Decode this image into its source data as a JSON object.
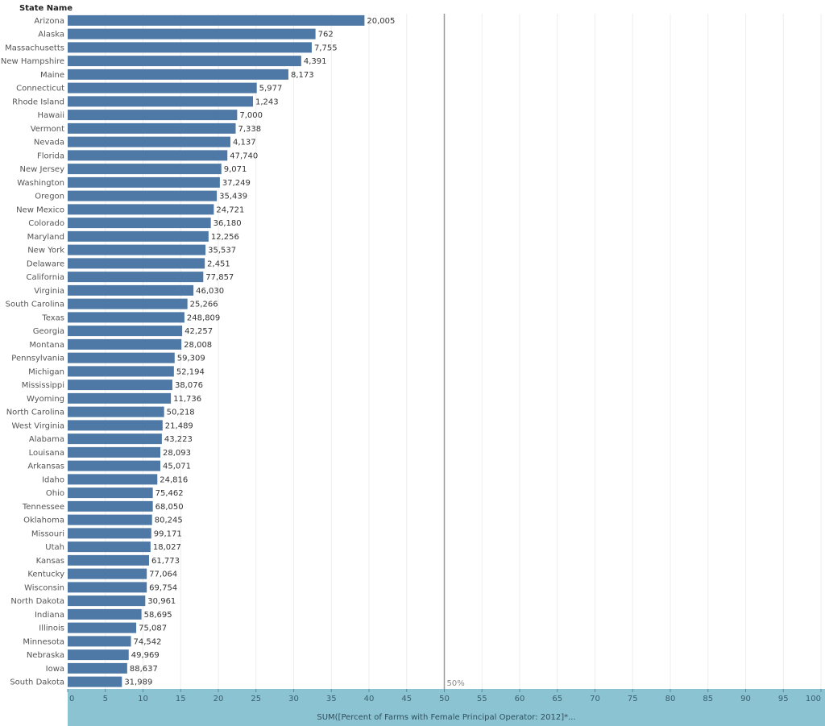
{
  "colors": {
    "bar": "#4e79a7",
    "axis_band": "#8cc3d3",
    "reference_line": "#999999",
    "grid": "#eeeeee"
  },
  "chart_data": {
    "type": "bar",
    "orientation": "horizontal",
    "row_header": "State Name",
    "xlabel": "SUM([Percent of Farms with Female Principal Operator:  2012]*...",
    "xlim": [
      0,
      100
    ],
    "xticks": [
      0,
      5,
      10,
      15,
      20,
      25,
      30,
      35,
      40,
      45,
      50,
      55,
      60,
      65,
      70,
      75,
      80,
      85,
      90,
      95,
      100
    ],
    "reference_line": {
      "value": 50,
      "label": "50%"
    },
    "grid": true,
    "bars": [
      {
        "state": "Arizona",
        "value": 39.4,
        "label": "20,005"
      },
      {
        "state": "Alaska",
        "value": 32.9,
        "label": "762"
      },
      {
        "state": "Massachusetts",
        "value": 32.4,
        "label": "7,755"
      },
      {
        "state": "New Hampshire",
        "value": 31.0,
        "label": "4,391"
      },
      {
        "state": "Maine",
        "value": 29.3,
        "label": "8,173"
      },
      {
        "state": "Connecticut",
        "value": 25.1,
        "label": "5,977"
      },
      {
        "state": "Rhode Island",
        "value": 24.6,
        "label": "1,243"
      },
      {
        "state": "Hawaii",
        "value": 22.5,
        "label": "7,000"
      },
      {
        "state": "Vermont",
        "value": 22.3,
        "label": "7,338"
      },
      {
        "state": "Nevada",
        "value": 21.6,
        "label": "4,137"
      },
      {
        "state": "Florida",
        "value": 21.2,
        "label": "47,740"
      },
      {
        "state": "New Jersey",
        "value": 20.4,
        "label": "9,071"
      },
      {
        "state": "Washington",
        "value": 20.2,
        "label": "37,249"
      },
      {
        "state": "Oregon",
        "value": 19.8,
        "label": "35,439"
      },
      {
        "state": "New Mexico",
        "value": 19.4,
        "label": "24,721"
      },
      {
        "state": "Colorado",
        "value": 19.0,
        "label": "36,180"
      },
      {
        "state": "Maryland",
        "value": 18.7,
        "label": "12,256"
      },
      {
        "state": "New York",
        "value": 18.3,
        "label": "35,537"
      },
      {
        "state": "Delaware",
        "value": 18.2,
        "label": "2,451"
      },
      {
        "state": "California",
        "value": 18.0,
        "label": "77,857"
      },
      {
        "state": "Virginia",
        "value": 16.7,
        "label": "46,030"
      },
      {
        "state": "South Carolina",
        "value": 15.9,
        "label": "25,266"
      },
      {
        "state": "Texas",
        "value": 15.5,
        "label": "248,809"
      },
      {
        "state": "Georgia",
        "value": 15.2,
        "label": "42,257"
      },
      {
        "state": "Montana",
        "value": 15.1,
        "label": "28,008"
      },
      {
        "state": "Pennsylvania",
        "value": 14.2,
        "label": "59,309"
      },
      {
        "state": "Michigan",
        "value": 14.1,
        "label": "52,194"
      },
      {
        "state": "Mississippi",
        "value": 13.9,
        "label": "38,076"
      },
      {
        "state": "Wyoming",
        "value": 13.7,
        "label": "11,736"
      },
      {
        "state": "North Carolina",
        "value": 12.8,
        "label": "50,218"
      },
      {
        "state": "West Virginia",
        "value": 12.6,
        "label": "21,489"
      },
      {
        "state": "Alabama",
        "value": 12.5,
        "label": "43,223"
      },
      {
        "state": "Louisana",
        "value": 12.3,
        "label": "28,093"
      },
      {
        "state": "Arkansas",
        "value": 12.3,
        "label": "45,071"
      },
      {
        "state": "Idaho",
        "value": 11.9,
        "label": "24,816"
      },
      {
        "state": "Ohio",
        "value": 11.3,
        "label": "75,462"
      },
      {
        "state": "Tennessee",
        "value": 11.3,
        "label": "68,050"
      },
      {
        "state": "Oklahoma",
        "value": 11.2,
        "label": "80,245"
      },
      {
        "state": "Missouri",
        "value": 11.1,
        "label": "99,171"
      },
      {
        "state": "Utah",
        "value": 11.0,
        "label": "18,027"
      },
      {
        "state": "Kansas",
        "value": 10.8,
        "label": "61,773"
      },
      {
        "state": "Kentucky",
        "value": 10.5,
        "label": "77,064"
      },
      {
        "state": "Wisconsin",
        "value": 10.5,
        "label": "69,754"
      },
      {
        "state": "North Dakota",
        "value": 10.3,
        "label": "30,961"
      },
      {
        "state": "Indiana",
        "value": 9.8,
        "label": "58,695"
      },
      {
        "state": "Illinois",
        "value": 9.1,
        "label": "75,087"
      },
      {
        "state": "Minnesota",
        "value": 8.4,
        "label": "74,542"
      },
      {
        "state": "Nebraska",
        "value": 8.1,
        "label": "49,969"
      },
      {
        "state": "Iowa",
        "value": 7.9,
        "label": "88,637"
      },
      {
        "state": "South Dakota",
        "value": 7.2,
        "label": "31,989"
      }
    ]
  }
}
